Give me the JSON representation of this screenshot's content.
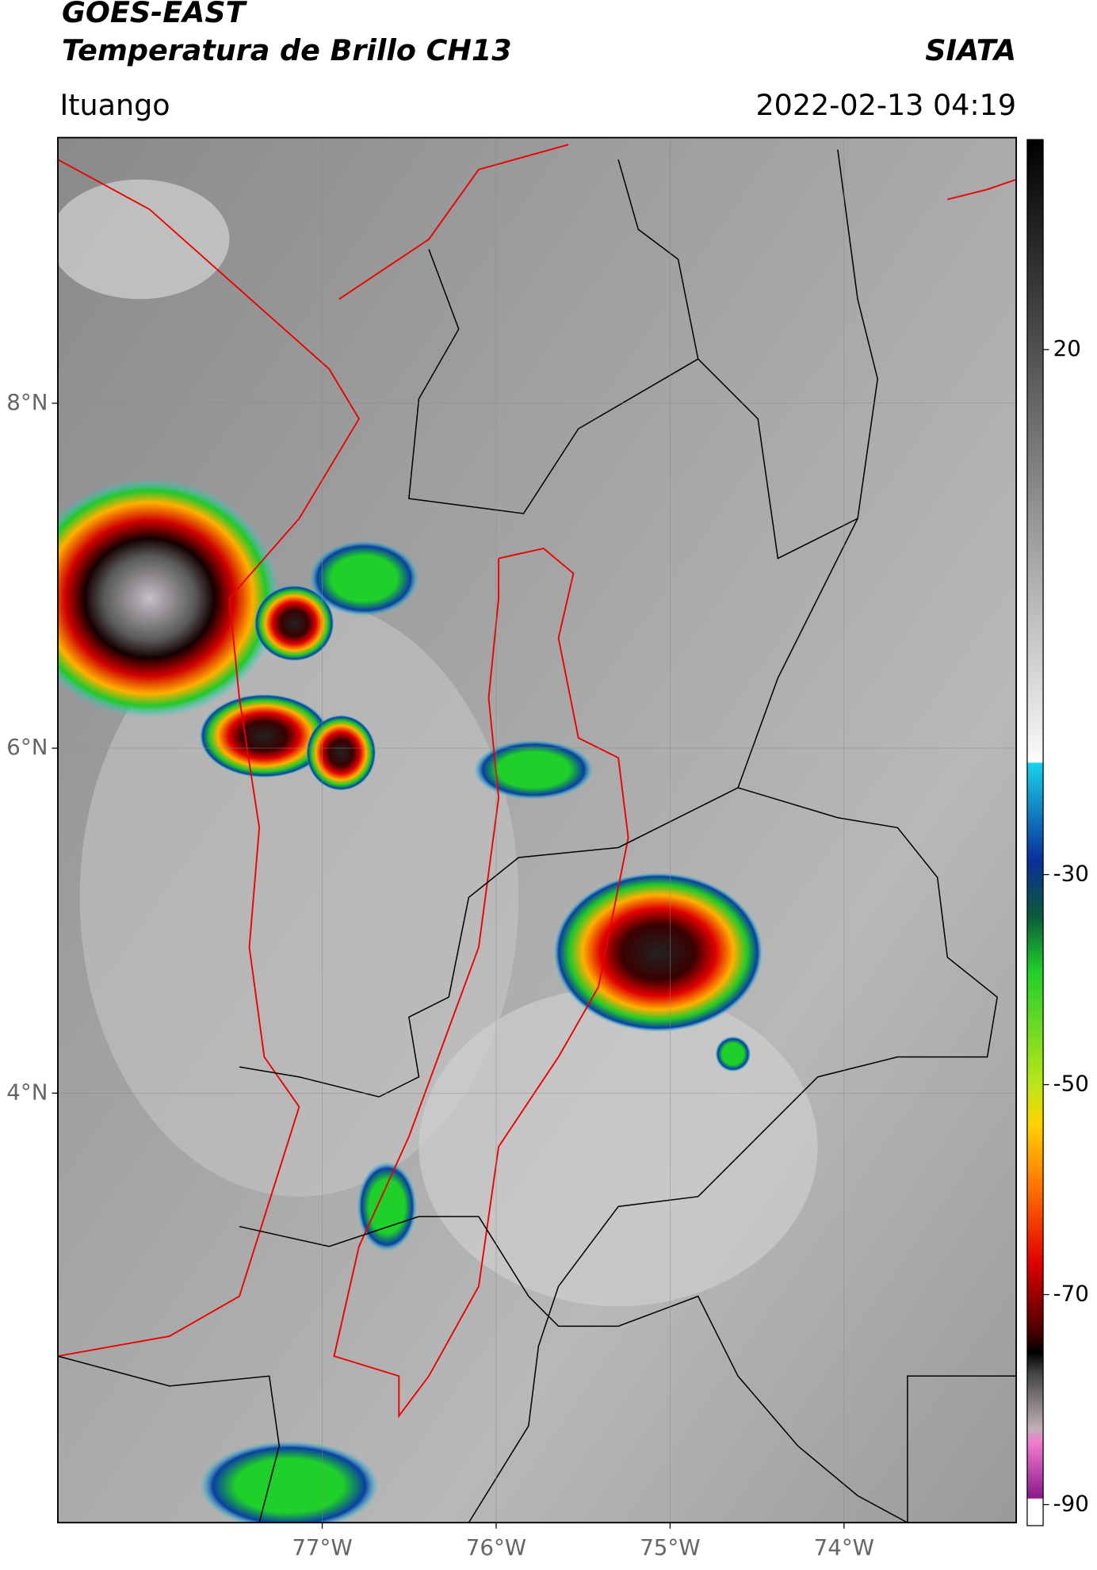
{
  "header": {
    "satellite": "GOES-EAST",
    "product": "Temperatura de Brillo CH13",
    "org": "SIATA",
    "region": "Ituango",
    "datetime": "2022-02-13 04:19"
  },
  "map": {
    "xlim": [
      -78.52,
      -73.01
    ],
    "ylim": [
      1.51,
      9.54
    ],
    "xticks": [
      {
        "value": -77,
        "label": "77°W"
      },
      {
        "value": -76,
        "label": "76°W"
      },
      {
        "value": -75,
        "label": "75°W"
      },
      {
        "value": -74,
        "label": "74°W"
      }
    ],
    "yticks": [
      {
        "value": 8,
        "label": "8°N"
      },
      {
        "value": 6,
        "label": "6°N"
      },
      {
        "value": 4,
        "label": "4°N"
      }
    ],
    "grid": true
  },
  "colorbar": {
    "lim": [
      -92,
      40
    ],
    "ticks": [
      20,
      -30,
      -50,
      -70,
      -90
    ]
  }
}
